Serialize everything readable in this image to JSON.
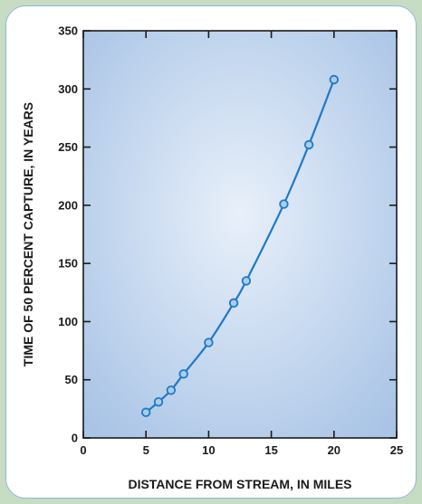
{
  "chart_data": {
    "type": "line",
    "title": "",
    "xlabel": "DISTANCE FROM STREAM, IN MILES",
    "ylabel": "TIME OF 50 PERCENT CAPTURE, IN YEARS",
    "xlim": [
      0,
      25
    ],
    "ylim": [
      0,
      350
    ],
    "x_ticks": [
      0,
      5,
      10,
      15,
      20,
      25
    ],
    "y_ticks": [
      0,
      50,
      100,
      150,
      200,
      250,
      300,
      350
    ],
    "grid": false,
    "series": [
      {
        "x": [
          5,
          6,
          7,
          8,
          10,
          12,
          13,
          16,
          18,
          20
        ],
        "y": [
          22,
          31,
          41,
          55,
          82,
          116,
          135,
          201,
          252,
          308
        ]
      }
    ],
    "colors": {
      "line": "#1f78c8",
      "marker_edge": "#1f78c8",
      "marker_fill": "#a9cdea",
      "plot_bg_center": "#e8f0fa",
      "plot_bg_edge": "#a9c4e6"
    }
  }
}
